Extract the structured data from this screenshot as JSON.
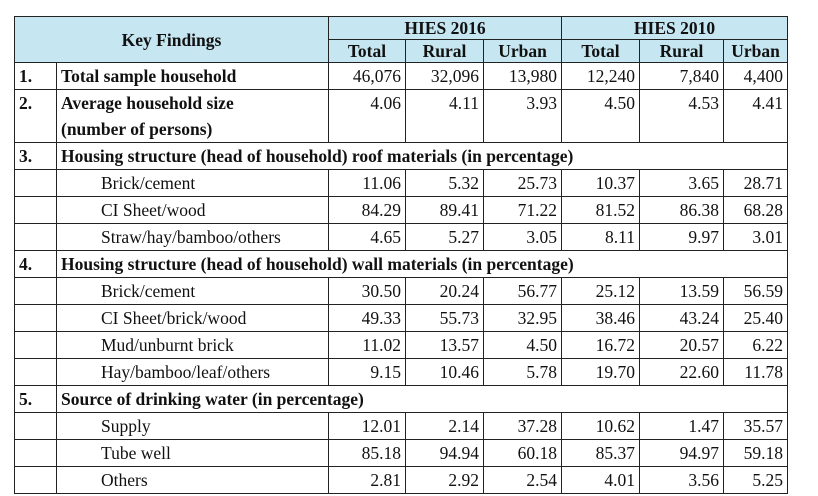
{
  "header": {
    "key_findings": "Key Findings",
    "group_2016": "HIES 2016",
    "group_2010": "HIES 2010",
    "cols": [
      "Total",
      "Rural",
      "Urban",
      "Total",
      "Rural",
      "Urban"
    ]
  },
  "rows": {
    "r1": {
      "no": "1.",
      "label": "Total sample household",
      "values": [
        "46,076",
        "32,096",
        "13,980",
        "12,240",
        "7,840",
        "4,400"
      ]
    },
    "r2": {
      "no": "2.",
      "label1": "Average household size",
      "label2": "(number of persons)",
      "values": [
        "4.06",
        "4.11",
        "3.93",
        "4.50",
        "4.53",
        "4.41"
      ]
    },
    "s3": {
      "no": "3.",
      "title": "Housing structure (head of household) roof materials (in percentage)",
      "items": [
        {
          "label": "Brick/cement",
          "values": [
            "11.06",
            "5.32",
            "25.73",
            "10.37",
            "3.65",
            "28.71"
          ]
        },
        {
          "label": "CI Sheet/wood",
          "values": [
            "84.29",
            "89.41",
            "71.22",
            "81.52",
            "86.38",
            "68.28"
          ]
        },
        {
          "label": "Straw/hay/bamboo/others",
          "values": [
            "4.65",
            "5.27",
            "3.05",
            "8.11",
            "9.97",
            "3.01"
          ]
        }
      ]
    },
    "s4": {
      "no": "4.",
      "title": "Housing structure (head of household) wall materials (in percentage)",
      "items": [
        {
          "label": "Brick/cement",
          "values": [
            "30.50",
            "20.24",
            "56.77",
            "25.12",
            "13.59",
            "56.59"
          ]
        },
        {
          "label": "CI Sheet/brick/wood",
          "values": [
            "49.33",
            "55.73",
            "32.95",
            "38.46",
            "43.24",
            "25.40"
          ]
        },
        {
          "label": "Mud/unburnt brick",
          "values": [
            "11.02",
            "13.57",
            "4.50",
            "16.72",
            "20.57",
            "6.22"
          ]
        },
        {
          "label": "Hay/bamboo/leaf/others",
          "values": [
            "9.15",
            "10.46",
            "5.78",
            "19.70",
            "22.60",
            "11.78"
          ]
        }
      ]
    },
    "s5": {
      "no": "5.",
      "title": "Source of drinking water (in percentage)",
      "items": [
        {
          "label": "Supply",
          "values": [
            "12.01",
            "2.14",
            "37.28",
            "10.62",
            "1.47",
            "35.57"
          ]
        },
        {
          "label": "Tube well",
          "values": [
            "85.18",
            "94.94",
            "60.18",
            "85.37",
            "94.97",
            "59.18"
          ]
        },
        {
          "label": "Others",
          "values": [
            "2.81",
            "2.92",
            "2.54",
            "4.01",
            "3.56",
            "5.25"
          ]
        }
      ]
    }
  },
  "colors": {
    "header_bg": "#c6e6f1",
    "border": "#222222"
  }
}
